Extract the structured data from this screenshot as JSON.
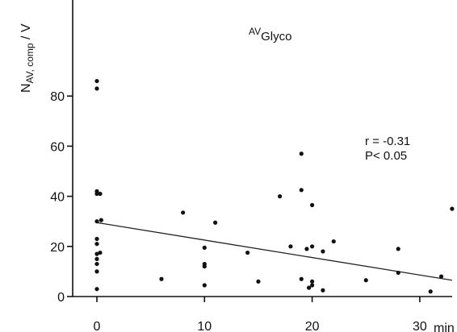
{
  "chart_data": {
    "type": "scatter",
    "title": "",
    "annotation_dataset": {
      "sup": "AV",
      "sub": "Glyco"
    },
    "stats": {
      "r": "r = -0.31",
      "p": "P< 0.05"
    },
    "ylabel": {
      "main": "N",
      "sub": "AV, comp",
      "rest": " / V"
    },
    "xlabel": "",
    "x_unit": "min",
    "xlim": [
      0,
      33
    ],
    "ylim": [
      0,
      90
    ],
    "xticks": [
      0,
      10,
      20,
      30
    ],
    "xtick_labels": [
      "0",
      "10",
      "20",
      "30"
    ],
    "yticks": [
      0,
      20,
      40,
      60,
      80
    ],
    "ytick_labels": [
      "0",
      "20",
      "40",
      "60",
      "80"
    ],
    "grid": false,
    "regression_line": {
      "x": [
        0,
        33
      ],
      "y": [
        29.5,
        6.5
      ]
    },
    "points": [
      {
        "x": 0,
        "y": 86
      },
      {
        "x": 0,
        "y": 83
      },
      {
        "x": 0,
        "y": 42
      },
      {
        "x": 0,
        "y": 41
      },
      {
        "x": 0.3,
        "y": 41
      },
      {
        "x": 0,
        "y": 30
      },
      {
        "x": 0.4,
        "y": 30.5
      },
      {
        "x": 0,
        "y": 23
      },
      {
        "x": 0,
        "y": 21
      },
      {
        "x": 0,
        "y": 17
      },
      {
        "x": 0.3,
        "y": 17.5
      },
      {
        "x": 0,
        "y": 15
      },
      {
        "x": 0,
        "y": 13
      },
      {
        "x": 0,
        "y": 10
      },
      {
        "x": 0,
        "y": 3
      },
      {
        "x": 6,
        "y": 7
      },
      {
        "x": 8,
        "y": 33.5
      },
      {
        "x": 10,
        "y": 19.5
      },
      {
        "x": 10,
        "y": 13
      },
      {
        "x": 10,
        "y": 12
      },
      {
        "x": 10,
        "y": 4.5
      },
      {
        "x": 11,
        "y": 29.5
      },
      {
        "x": 14,
        "y": 17.5
      },
      {
        "x": 15,
        "y": 6
      },
      {
        "x": 17,
        "y": 40
      },
      {
        "x": 18,
        "y": 20
      },
      {
        "x": 19,
        "y": 57
      },
      {
        "x": 19,
        "y": 42.5
      },
      {
        "x": 19,
        "y": 7
      },
      {
        "x": 19.5,
        "y": 19
      },
      {
        "x": 20,
        "y": 36.5
      },
      {
        "x": 20,
        "y": 20
      },
      {
        "x": 20,
        "y": 6
      },
      {
        "x": 20,
        "y": 4.5
      },
      {
        "x": 19.7,
        "y": 3.5
      },
      {
        "x": 21,
        "y": 18
      },
      {
        "x": 21,
        "y": 2.5
      },
      {
        "x": 22,
        "y": 22
      },
      {
        "x": 25,
        "y": 6.5
      },
      {
        "x": 28,
        "y": 19
      },
      {
        "x": 28,
        "y": 9.5
      },
      {
        "x": 31,
        "y": 2
      },
      {
        "x": 32,
        "y": 8
      },
      {
        "x": 33,
        "y": 35
      }
    ]
  }
}
